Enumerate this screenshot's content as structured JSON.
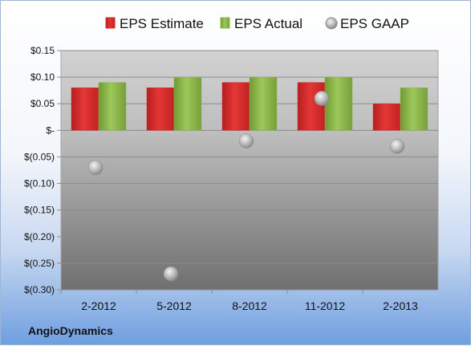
{
  "brand": "AngioDynamics",
  "colors": {
    "estimate": "#d92b2b",
    "actual": "#8fb84a",
    "gaap": "#b0b0b0"
  },
  "chart_data": {
    "type": "bar",
    "categories": [
      "2-2012",
      "5-2012",
      "8-2012",
      "11-2012",
      "2-2013"
    ],
    "series": [
      {
        "name": "EPS Estimate",
        "kind": "bar",
        "values": [
          0.08,
          0.08,
          0.09,
          0.09,
          0.05
        ]
      },
      {
        "name": "EPS Actual",
        "kind": "bar",
        "values": [
          0.09,
          0.1,
          0.1,
          0.1,
          0.08
        ]
      },
      {
        "name": "EPS GAAP",
        "kind": "scatter",
        "values": [
          -0.07,
          -0.27,
          -0.02,
          0.06,
          -0.03
        ]
      }
    ],
    "yticks": [
      0.15,
      0.1,
      0.05,
      0,
      -0.05,
      -0.1,
      -0.15,
      -0.2,
      -0.25,
      -0.3
    ],
    "ytick_labels": [
      "$0.15",
      "$0.10",
      "$0.05",
      "$-",
      "$(0.05)",
      "$(0.10)",
      "$(0.15)",
      "$(0.20)",
      "$(0.25)",
      "$(0.30)"
    ],
    "ylim": [
      -0.3,
      0.15
    ],
    "grid": true,
    "legend_position": "top"
  }
}
